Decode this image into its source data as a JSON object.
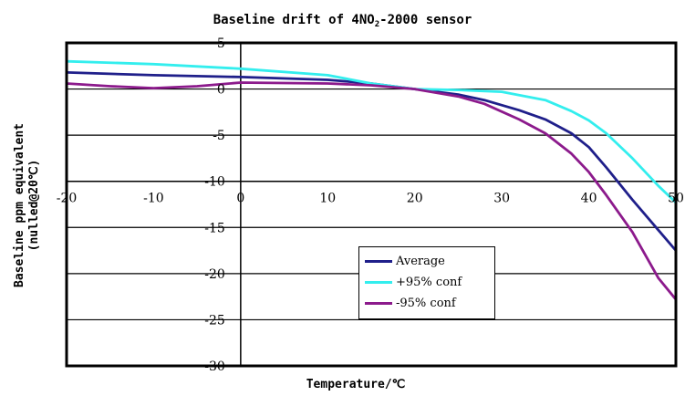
{
  "chart_data": {
    "type": "line",
    "title_main": "Baseline drift of 4NO",
    "title_sub": "2",
    "title_rest": "-2000  sensor",
    "xlabel": "Temperature/℃",
    "ylabel_line1": "Baseline ppm equivalent",
    "ylabel_line2": "(nulled@20℃)",
    "xlim": [
      -20,
      50
    ],
    "ylim": [
      -30,
      5
    ],
    "xticks": [
      -20,
      -10,
      0,
      10,
      20,
      30,
      40,
      50
    ],
    "yticks": [
      5,
      0,
      -5,
      -10,
      -15,
      -20,
      -25,
      -30
    ],
    "grid": "horizontal",
    "legend_position": "lower-center",
    "series": [
      {
        "name": "Average",
        "color": "#1f1f8a",
        "x": [
          -20,
          -10,
          0,
          10,
          15,
          20,
          25,
          28,
          32,
          35,
          38,
          40,
          42,
          45,
          48,
          50
        ],
        "y": [
          1.8,
          1.5,
          1.3,
          1.0,
          0.6,
          0.0,
          -0.6,
          -1.2,
          -2.3,
          -3.3,
          -4.8,
          -6.3,
          -8.5,
          -12.0,
          -15.3,
          -17.5
        ]
      },
      {
        "name": "+95% conf",
        "color": "#33eeee",
        "x": [
          -20,
          -10,
          0,
          10,
          15,
          20,
          25,
          30,
          35,
          38,
          40,
          42,
          45,
          48,
          50
        ],
        "y": [
          3.0,
          2.7,
          2.2,
          1.5,
          0.6,
          0.0,
          -0.1,
          -0.3,
          -1.2,
          -2.4,
          -3.4,
          -4.8,
          -7.5,
          -10.5,
          -12.3
        ]
      },
      {
        "name": "-95% conf",
        "color": "#8c1a8c",
        "x": [
          -20,
          -15,
          -10,
          -5,
          0,
          10,
          15,
          20,
          25,
          28,
          32,
          35,
          38,
          40,
          42,
          45,
          48,
          50
        ],
        "y": [
          0.6,
          0.3,
          0.1,
          0.3,
          0.7,
          0.6,
          0.4,
          0.0,
          -0.8,
          -1.6,
          -3.3,
          -4.8,
          -7.0,
          -9.0,
          -11.5,
          -15.5,
          -20.5,
          -22.8
        ]
      }
    ]
  }
}
